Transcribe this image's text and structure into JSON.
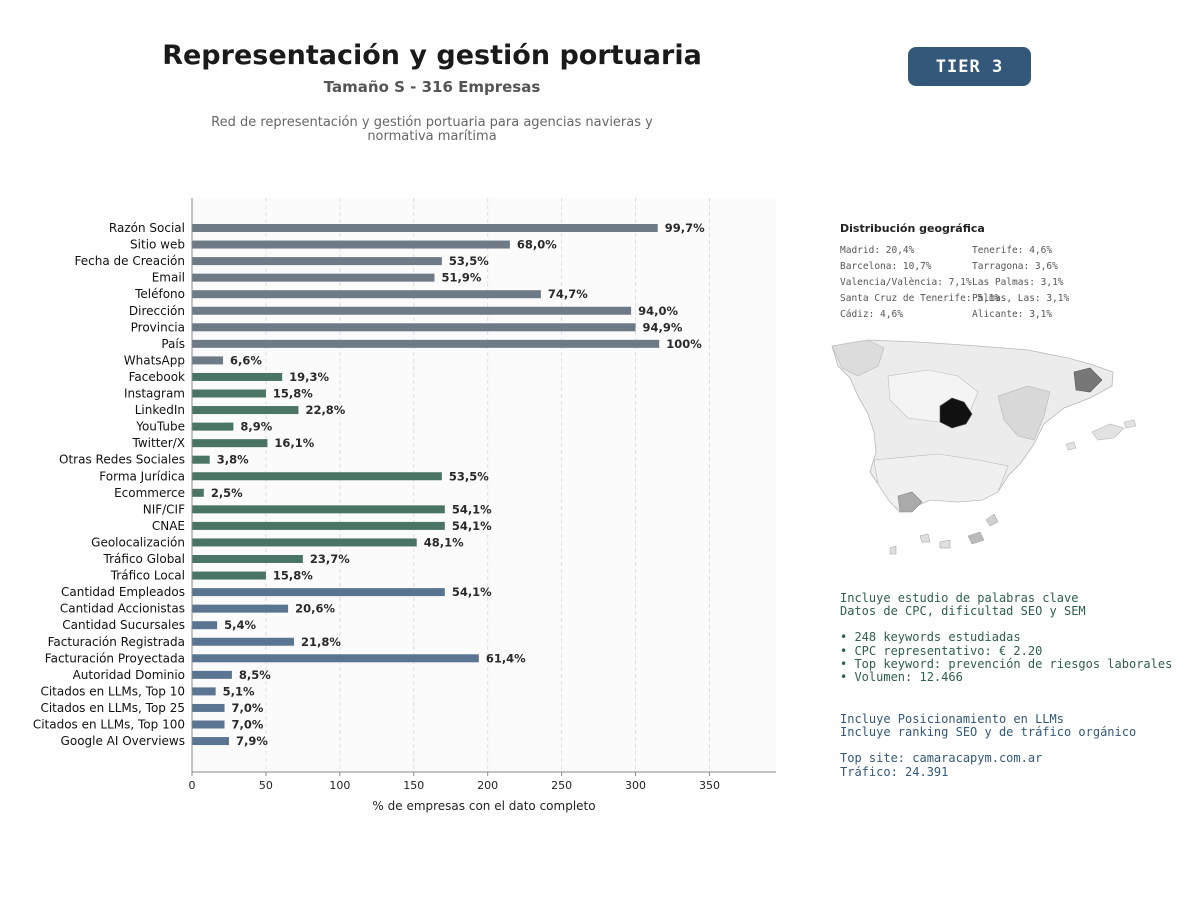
{
  "header": {
    "title": "Representación y gestión portuaria",
    "subtitle": "Tamaño S - 316 Empresas",
    "description_line1": "Red de representación y gestión portuaria para agencias navieras y",
    "description_line2": "normativa marítima",
    "tier_badge": "TIER 3"
  },
  "colors": {
    "group_basic": "#6e7b87",
    "group_digital": "#4a7565",
    "group_financial": "#5a7591",
    "badge_bg": "#33587a",
    "seo_text": "#2e5e4e",
    "llm_text": "#33587a"
  },
  "chart_data": {
    "type": "bar",
    "orientation": "horizontal",
    "xlabel": "% de empresas con el dato completo",
    "xlim": [
      0,
      395
    ],
    "xticks": [
      0,
      50,
      100,
      150,
      200,
      250,
      300,
      350
    ],
    "grid": "vertical dashed",
    "categories": [
      "Razón Social",
      "Sitio web",
      "Fecha de Creación",
      "Email",
      "Teléfono",
      "Dirección",
      "Provincia",
      "País",
      "WhatsApp",
      "Facebook",
      "Instagram",
      "LinkedIn",
      "YouTube",
      "Twitter/X",
      "Otras Redes Sociales",
      "Forma Jurídica",
      "Ecommerce",
      "NIF/CIF",
      "CNAE",
      "Geolocalización",
      "Tráfico Global",
      "Tráfico Local",
      "Cantidad Empleados",
      "Cantidad Accionistas",
      "Cantidad Sucursales",
      "Facturación Registrada",
      "Facturación Proyectada",
      "Autoridad Dominio",
      "Citados en LLMs, Top 10",
      "Citados en LLMs, Top 25",
      "Citados en LLMs, Top 100",
      "Google AI Overviews"
    ],
    "values": [
      315,
      215,
      169,
      164,
      236,
      297,
      300,
      316,
      21,
      61,
      50,
      72,
      28,
      51,
      12,
      169,
      8,
      171,
      171,
      152,
      75,
      50,
      171,
      65,
      17,
      69,
      194,
      27,
      16,
      22,
      22,
      25
    ],
    "labels": [
      "99,7%",
      "68,0%",
      "53,5%",
      "51,9%",
      "74,7%",
      "94,0%",
      "94,9%",
      "100%",
      "6,6%",
      "19,3%",
      "15,8%",
      "22,8%",
      "8,9%",
      "16,1%",
      "3,8%",
      "53,5%",
      "2,5%",
      "54,1%",
      "54,1%",
      "48,1%",
      "23,7%",
      "15,8%",
      "54,1%",
      "20,6%",
      "5,4%",
      "21,8%",
      "61,4%",
      "8,5%",
      "5,1%",
      "7,0%",
      "7,0%",
      "7,9%"
    ],
    "groups": [
      "basic",
      "basic",
      "basic",
      "basic",
      "basic",
      "basic",
      "basic",
      "basic",
      "basic",
      "digital",
      "digital",
      "digital",
      "digital",
      "digital",
      "digital",
      "digital",
      "digital",
      "digital",
      "digital",
      "digital",
      "digital",
      "digital",
      "financial",
      "financial",
      "financial",
      "financial",
      "financial",
      "financial",
      "financial",
      "financial",
      "financial",
      "financial"
    ]
  },
  "geo": {
    "title": "Distribución geográfica",
    "col1": [
      "Madrid: 20,4%",
      "Barcelona: 10,7%",
      "Valencia/València: 7,1%",
      "Santa Cruz de Tenerife: 5,1%",
      "Cádiz: 4,6%"
    ],
    "col2": [
      "Tenerife: 4,6%",
      "Tarragona: 3,6%",
      "Las Palmas: 3,1%",
      "Palmas, Las: 3,1%",
      "Alicante: 3,1%"
    ]
  },
  "seo": {
    "line1": "Incluye estudio de palabras clave",
    "line2": "Datos de CPC, dificultad SEO y SEM",
    "bullets": [
      "• 248 keywords estudiadas",
      "• CPC representativo: € 2.20",
      "• Top keyword: prevención de riesgos laborales",
      "• Volumen: 12.466"
    ]
  },
  "llm": {
    "line1": "Incluye Posicionamiento en LLMs",
    "line2": "Incluye ranking SEO y de tráfico orgánico",
    "top_site": "Top site: camaracapym.com.ar",
    "traffic": "Tráfico: 24.391"
  }
}
